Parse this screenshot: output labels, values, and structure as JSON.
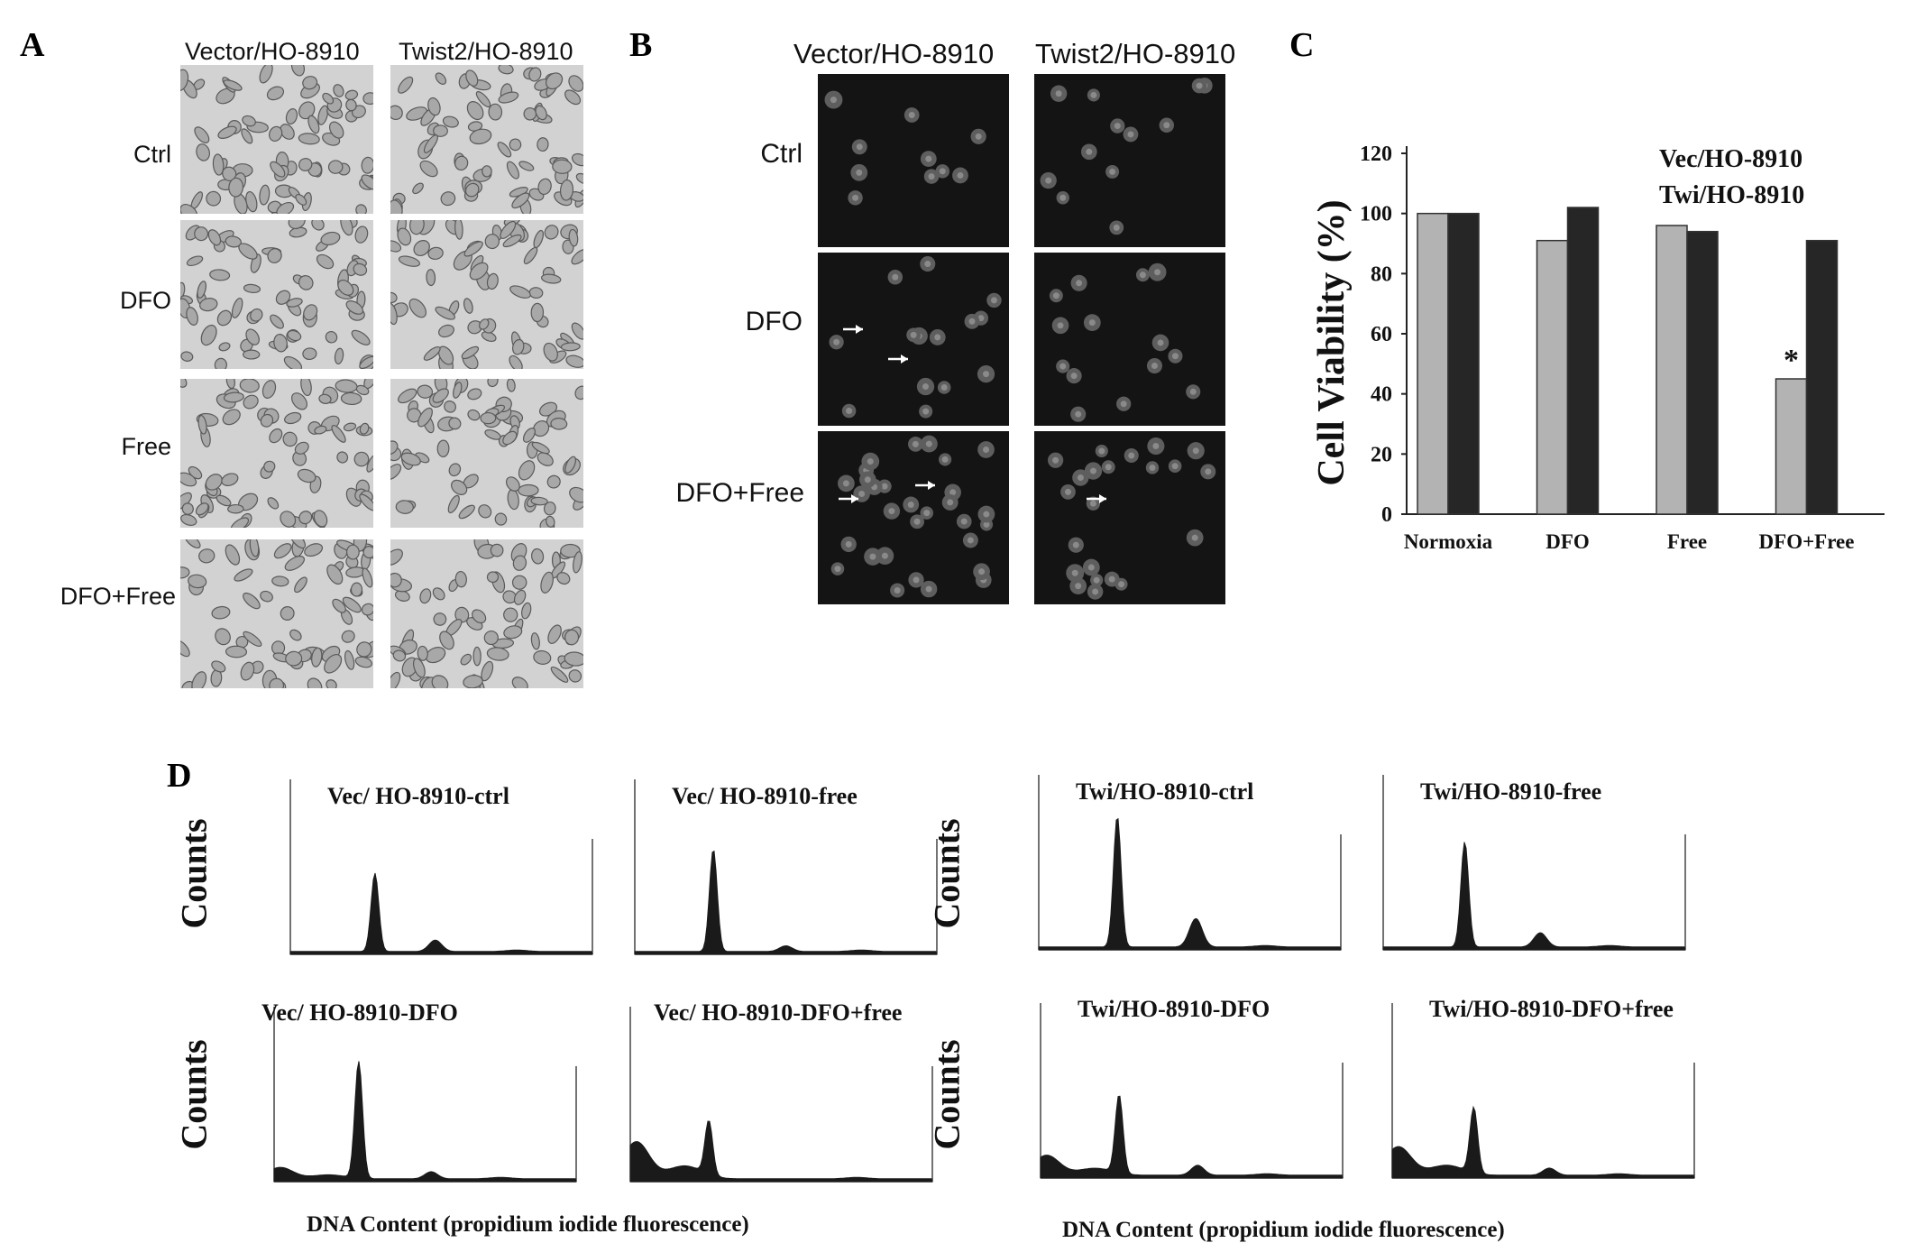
{
  "panelA": {
    "letter": "A",
    "columns": [
      "Vector/HO-8910",
      "Twist2/HO-8910"
    ],
    "rows": [
      "Ctrl",
      "DFO",
      "Free",
      "DFO+Free"
    ]
  },
  "panelB": {
    "letter": "B",
    "columns": [
      "Vector/HO-8910",
      "Twist2/HO-8910"
    ],
    "rows": [
      "Ctrl",
      "DFO",
      "DFO+Free"
    ]
  },
  "panelC": {
    "letter": "C"
  },
  "chart_data": {
    "type": "bar",
    "categories": [
      "Normoxia",
      "DFO",
      "Free",
      "DFO+Free"
    ],
    "series": [
      {
        "name": "Vec/HO-8910",
        "values": [
          100,
          91,
          96,
          45
        ],
        "color": "#b3b3b3"
      },
      {
        "name": "Twi/HO-8910",
        "values": [
          100,
          102,
          94,
          91
        ],
        "color": "#262626"
      }
    ],
    "ylabel": "Cell  Viability (%)",
    "ylim": [
      0,
      120
    ],
    "yticks": [
      "0",
      "20",
      "40",
      "60",
      "80",
      "100",
      "120"
    ],
    "annotation": "*",
    "legend_placement": "top-right",
    "grid": false
  },
  "panelD": {
    "letter": "D",
    "ylabel": "Counts",
    "xlabel": "DNA Content (propidium iodide fluorescence)",
    "histograms": [
      "Vec/ HO-8910-ctrl",
      "Vec/ HO-8910-free",
      "Twi/HO-8910-ctrl",
      "Twi/HO-8910-free",
      "Vec/ HO-8910-DFO",
      "Vec/ HO-8910-DFO+free",
      "Twi/HO-8910-DFO",
      "Twi/HO-8910-DFO+free"
    ]
  }
}
